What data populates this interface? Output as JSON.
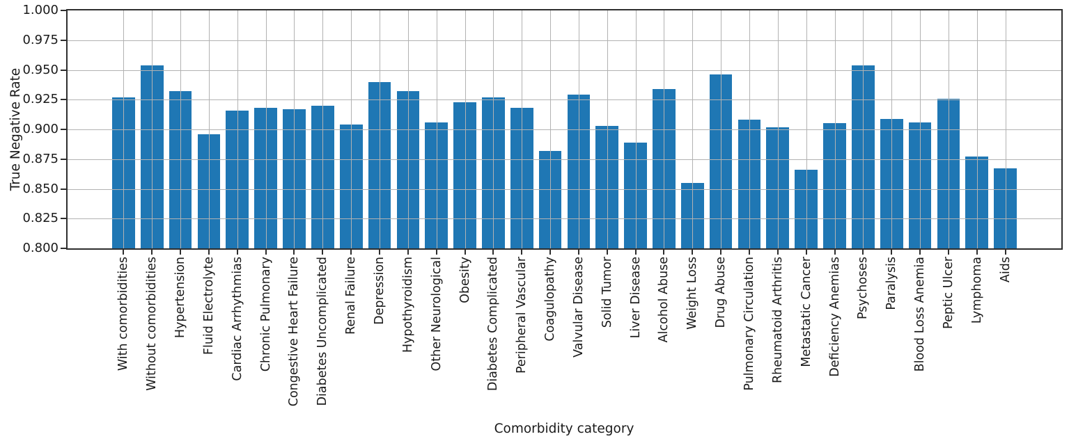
{
  "chart_data": {
    "type": "bar",
    "title": "",
    "xlabel": "Comorbidity category",
    "ylabel": "True Negative Rate",
    "ylim": [
      0.8,
      1.0
    ],
    "ytick_step": 0.025,
    "ytick_labels": [
      "1.000",
      "0.975",
      "0.950",
      "0.925",
      "0.900",
      "0.875",
      "0.850",
      "0.825",
      "0.800"
    ],
    "grid": true,
    "grid_on_top_of_bars": true,
    "legend": false,
    "bar_color": "#1f77b4",
    "grid_color": "#b2b2b2",
    "axis_color": "#2e2e2e",
    "text_color": "#1a1a1a",
    "categories": [
      "With comorbidities",
      "Without comorbidities",
      "Hypertension",
      "Fluid Electrolyte",
      "Cardiac Arrhythmias",
      "Chronic Pulmonary",
      "Congestive Heart Failure",
      "Diabetes Uncomplicated",
      "Renal Failure",
      "Depression",
      "Hypothyroidism",
      "Other Neurological",
      "Obesity",
      "Diabetes Complicated",
      "Peripheral Vascular",
      "Coagulopathy",
      "Valvular Disease",
      "Solid Tumor",
      "Liver Disease",
      "Alcohol Abuse",
      "Weight Loss",
      "Drug Abuse",
      "Pulmonary Circulation",
      "Rheumatoid Arthritis",
      "Metastatic Cancer",
      "Deficiency Anemias",
      "Psychoses",
      "Paralysis",
      "Blood Loss Anemia",
      "Peptic Ulcer",
      "Lymphoma",
      "Aids"
    ],
    "values": [
      0.927,
      0.954,
      0.932,
      0.896,
      0.916,
      0.918,
      0.917,
      0.92,
      0.904,
      0.94,
      0.932,
      0.906,
      0.923,
      0.927,
      0.918,
      0.882,
      0.929,
      0.903,
      0.889,
      0.934,
      0.855,
      0.946,
      0.908,
      0.902,
      0.866,
      0.905,
      0.954,
      0.909,
      0.906,
      0.926,
      0.877,
      0.867
    ]
  }
}
